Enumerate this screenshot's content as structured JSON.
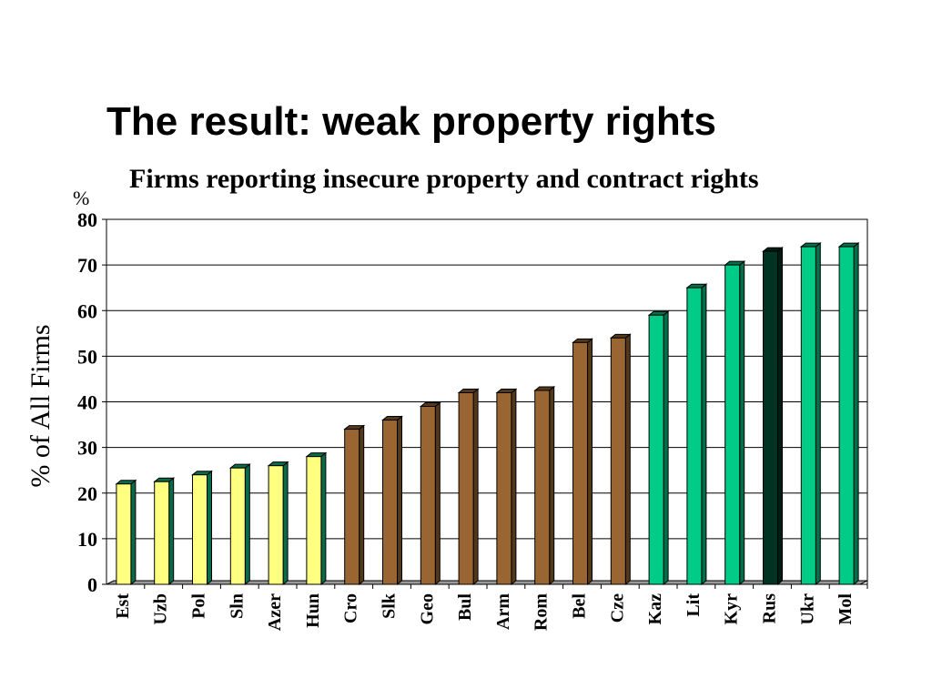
{
  "slide": {
    "title": "The result:  weak property rights"
  },
  "chart_data": {
    "type": "bar",
    "title": "Firms reporting insecure property and contract rights",
    "unit_label": "%",
    "ylabel": "% of All Firms",
    "xlabel": "",
    "ylim": [
      0,
      80
    ],
    "yticks": [
      0,
      10,
      20,
      30,
      40,
      50,
      60,
      70,
      80
    ],
    "grid": true,
    "categories": [
      "Est",
      "Uzb",
      "Pol",
      "Sln",
      "Azer",
      "Hun",
      "Cro",
      "Slk",
      "Geo",
      "Bul",
      "Arm",
      "Rom",
      "Bel",
      "Cze",
      "Kaz",
      "Lit",
      "Kyr",
      "Rus",
      "Ukr",
      "Mol"
    ],
    "values": [
      22,
      22.5,
      24,
      25.5,
      26,
      28,
      34,
      36,
      39,
      42,
      42,
      42.5,
      53,
      54,
      59,
      65,
      70,
      73,
      74,
      74
    ],
    "bar_colors": [
      "#ffff80",
      "#ffff80",
      "#ffff80",
      "#ffff80",
      "#ffff80",
      "#ffff80",
      "#996633",
      "#996633",
      "#996633",
      "#996633",
      "#996633",
      "#996633",
      "#996633",
      "#996633",
      "#00cc88",
      "#00cc88",
      "#00cc88",
      "#003322",
      "#00cc88",
      "#00cc88"
    ]
  }
}
